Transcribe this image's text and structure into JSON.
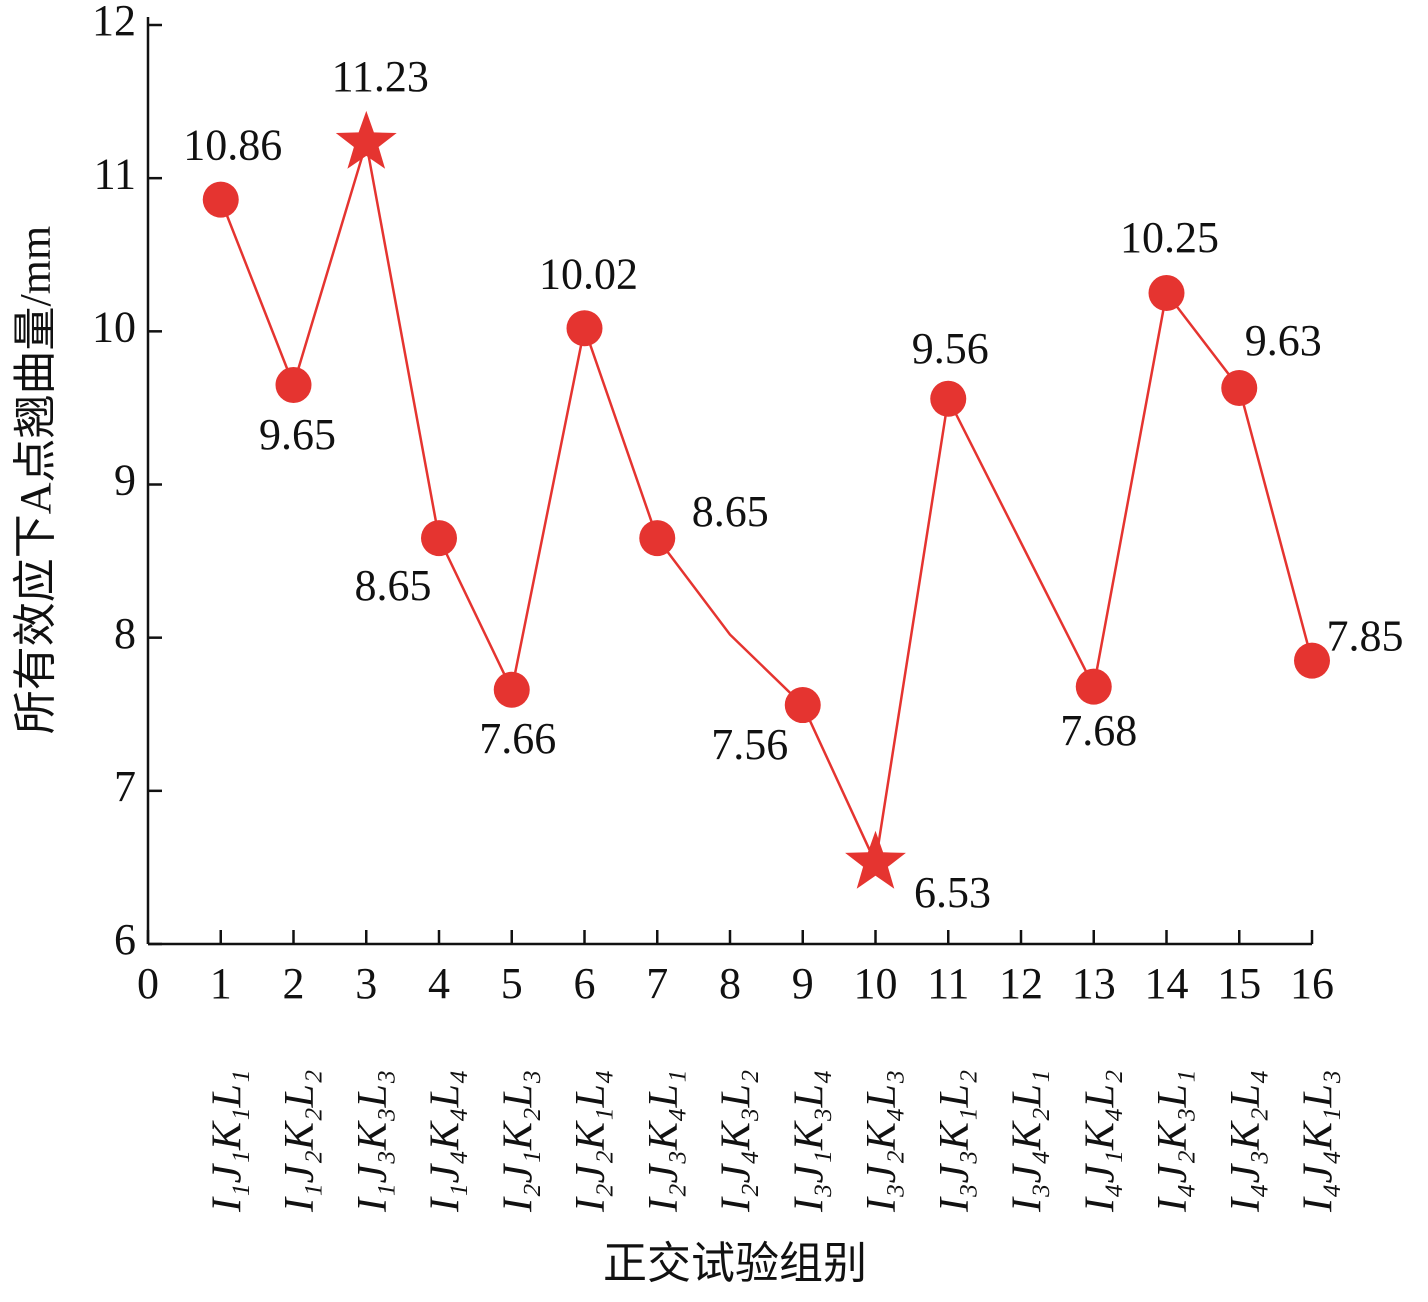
{
  "chart_data": {
    "type": "line",
    "y_label": "所有效应下A点翘曲量/mm",
    "x_label": "正交试验组别",
    "x": [
      1,
      2,
      3,
      4,
      5,
      6,
      7,
      8,
      9,
      10,
      11,
      13,
      14,
      15,
      16
    ],
    "series": [
      {
        "color": "#e53430",
        "values": [
          10.86,
          9.65,
          11.23,
          8.65,
          7.66,
          10.02,
          8.65,
          8.02,
          7.56,
          6.53,
          9.56,
          7.68,
          10.25,
          9.63,
          7.85
        ],
        "markers": [
          "circle",
          "circle",
          "star",
          "circle",
          "circle",
          "circle",
          "circle",
          "none",
          "circle",
          "star",
          "circle",
          "circle",
          "circle",
          "circle",
          "circle"
        ]
      }
    ],
    "xlim": [
      0,
      16
    ],
    "xticks": [
      0,
      1,
      2,
      3,
      4,
      5,
      6,
      7,
      8,
      9,
      10,
      11,
      12,
      13,
      14,
      15,
      16
    ],
    "ylim": [
      6,
      12
    ],
    "yticks": [
      6,
      7,
      8,
      9,
      10,
      11,
      12
    ],
    "group_ticks": [
      {
        "value": 1,
        "label": "I₁J₁K₁L₁"
      },
      {
        "value": 2,
        "label": "I₁J₂K₂L₂"
      },
      {
        "value": 3,
        "label": "I₁J₃K₃L₃"
      },
      {
        "value": 4,
        "label": "I₁J₄K₄L₄"
      },
      {
        "value": 5,
        "label": "I₂J₁K₂L₃"
      },
      {
        "value": 6,
        "label": "I₂J₂K₁L₄"
      },
      {
        "value": 7,
        "label": "I₂J₃K₄L₁"
      },
      {
        "value": 8,
        "label": "I₂J₄K₃L₂"
      },
      {
        "value": 9,
        "label": "I₃J₁K₃L₄"
      },
      {
        "value": 10,
        "label": "I₃J₂K₄L₃"
      },
      {
        "value": 11,
        "label": "I₃J₃K₁L₂"
      },
      {
        "value": 12,
        "label": "I₃J₄K₂L₁"
      },
      {
        "value": 13,
        "label": "I₄J₁K₄L₂"
      },
      {
        "value": 14,
        "label": "I₄J₂K₃L₁"
      },
      {
        "value": 15,
        "label": "I₄J₃K₂L₄"
      },
      {
        "value": 16,
        "label": "I₄J₄K₁L₃"
      }
    ]
  }
}
